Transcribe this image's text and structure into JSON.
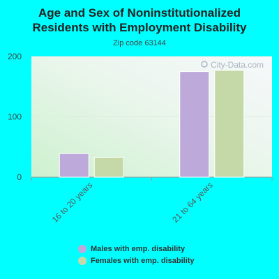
{
  "title_line1": "Age and Sex of Noninstitutionalized",
  "title_line2": "Residents with Employment Disability",
  "subtitle": "Zip code 63144",
  "watermark": "City-Data.com",
  "colors": {
    "background": "#00FFFF",
    "males": "#BEA9DB",
    "females": "#C5D9A8"
  },
  "chart_data": {
    "type": "bar",
    "categories": [
      "16 to 20 years",
      "21 to 64 years"
    ],
    "series": [
      {
        "name": "Males with emp. disability",
        "values": [
          39,
          175
        ]
      },
      {
        "name": "Females with emp. disability",
        "values": [
          33,
          177
        ]
      }
    ],
    "yticks": [
      0,
      100,
      200
    ],
    "ylim": [
      0,
      200
    ],
    "legend_position": "bottom"
  }
}
